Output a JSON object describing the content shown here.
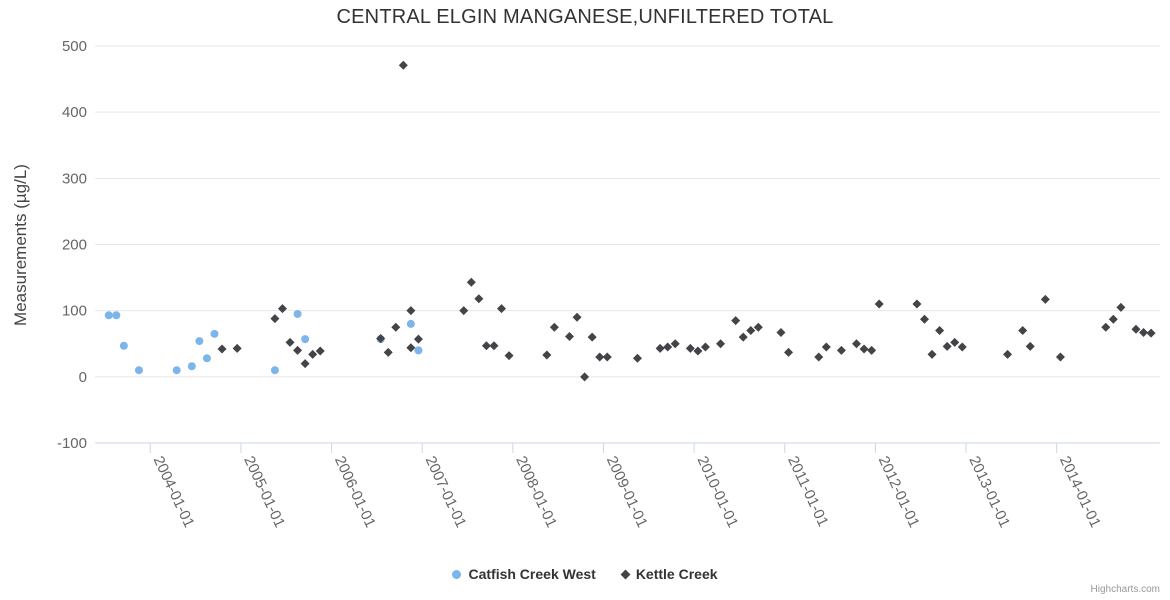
{
  "credit": "Highcharts.com",
  "chart_data": {
    "type": "scatter",
    "title": "CENTRAL ELGIN MANGANESE,UNFILTERED TOTAL",
    "xlabel": "",
    "ylabel": "Measurements (µg/L)",
    "ylim": [
      -100,
      500
    ],
    "y_ticks": [
      -100,
      0,
      100,
      200,
      300,
      400,
      500
    ],
    "xlim": [
      2003.39,
      2015.14
    ],
    "x_tick_years": [
      2004,
      2005,
      2006,
      2007,
      2008,
      2009,
      2010,
      2011,
      2012,
      2013,
      2014
    ],
    "x_tick_labels": [
      "2004-01-01",
      "2005-01-01",
      "2006-01-01",
      "2007-01-01",
      "2008-01-01",
      "2009-01-01",
      "2010-01-01",
      "2011-01-01",
      "2012-01-01",
      "2013-01-01",
      "2014-01-01"
    ],
    "grid": true,
    "legend_position": "bottom-center",
    "grid_color": "#e6e6e6",
    "axis_line_color": "#ccd6eb",
    "tick_label_color": "#666666",
    "series": [
      {
        "name": "Catfish Creek West",
        "color": "#7cb5ec",
        "marker": "circle",
        "points": [
          [
            "2003-07",
            93
          ],
          [
            "2003-08",
            93
          ],
          [
            "2003-09",
            47
          ],
          [
            "2003-11",
            10
          ],
          [
            "2004-04",
            10
          ],
          [
            "2004-06",
            16
          ],
          [
            "2004-07",
            54
          ],
          [
            "2004-08",
            28
          ],
          [
            "2004-09",
            65
          ],
          [
            "2005-05",
            10
          ],
          [
            "2005-08",
            95
          ],
          [
            "2005-09",
            57
          ],
          [
            "2006-07",
            57
          ],
          [
            "2006-11",
            80
          ],
          [
            "2006-12",
            40
          ]
        ]
      },
      {
        "name": "Kettle Creek",
        "color": "#434348",
        "marker": "diamond",
        "points": [
          [
            "2004-10",
            42
          ],
          [
            "2004-12",
            43
          ],
          [
            "2005-05",
            88
          ],
          [
            "2005-06",
            103
          ],
          [
            "2005-07",
            52
          ],
          [
            "2005-08",
            40
          ],
          [
            "2005-09",
            20
          ],
          [
            "2005-10",
            34
          ],
          [
            "2005-11",
            39
          ],
          [
            "2006-07",
            58
          ],
          [
            "2006-08",
            37
          ],
          [
            "2006-09",
            75
          ],
          [
            "2006-10",
            471
          ],
          [
            "2006-11",
            100
          ],
          [
            "2006-11",
            44
          ],
          [
            "2006-12",
            57
          ],
          [
            "2007-06",
            100
          ],
          [
            "2007-07",
            143
          ],
          [
            "2007-08",
            118
          ],
          [
            "2007-09",
            47
          ],
          [
            "2007-10",
            47
          ],
          [
            "2007-11",
            103
          ],
          [
            "2007-12",
            32
          ],
          [
            "2008-05",
            33
          ],
          [
            "2008-06",
            75
          ],
          [
            "2008-08",
            61
          ],
          [
            "2008-09",
            90
          ],
          [
            "2008-10",
            0
          ],
          [
            "2008-11",
            60
          ],
          [
            "2008-12",
            30
          ],
          [
            "2009-01",
            30
          ],
          [
            "2009-05",
            28
          ],
          [
            "2009-08",
            43
          ],
          [
            "2009-09",
            45
          ],
          [
            "2009-10",
            50
          ],
          [
            "2009-12",
            43
          ],
          [
            "2010-01",
            39
          ],
          [
            "2010-02",
            45
          ],
          [
            "2010-04",
            50
          ],
          [
            "2010-06",
            85
          ],
          [
            "2010-07",
            60
          ],
          [
            "2010-08",
            70
          ],
          [
            "2010-09",
            75
          ],
          [
            "2010-12",
            67
          ],
          [
            "2011-01",
            37
          ],
          [
            "2011-05",
            30
          ],
          [
            "2011-06",
            45
          ],
          [
            "2011-08",
            40
          ],
          [
            "2011-10",
            50
          ],
          [
            "2011-11",
            42
          ],
          [
            "2011-12",
            40
          ],
          [
            "2012-01",
            110
          ],
          [
            "2012-06",
            110
          ],
          [
            "2012-07",
            87
          ],
          [
            "2012-08",
            34
          ],
          [
            "2012-09",
            70
          ],
          [
            "2012-10",
            46
          ],
          [
            "2012-11",
            52
          ],
          [
            "2012-12",
            45
          ],
          [
            "2013-06",
            34
          ],
          [
            "2013-08",
            70
          ],
          [
            "2013-09",
            46
          ],
          [
            "2013-11",
            117
          ],
          [
            "2014-01",
            30
          ],
          [
            "2014-07",
            75
          ],
          [
            "2014-08",
            87
          ],
          [
            "2014-09",
            105
          ],
          [
            "2014-11",
            72
          ],
          [
            "2014-12",
            67
          ],
          [
            "2015-01",
            66
          ]
        ]
      }
    ]
  }
}
